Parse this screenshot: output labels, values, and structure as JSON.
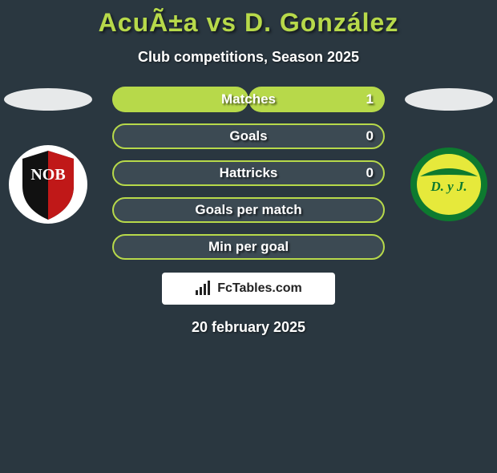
{
  "background_color": "#2a3740",
  "title": {
    "text": "AcuÃ±a vs D. González",
    "color": "#b7d94a",
    "fontsize": 32
  },
  "subtitle": {
    "text": "Club competitions, Season 2025",
    "color": "#ffffff",
    "fontsize": 18
  },
  "date": {
    "text": "20 february 2025",
    "color": "#ffffff",
    "fontsize": 18
  },
  "players": {
    "left": {
      "ellipse_color": "#e7e9ea",
      "crest": {
        "shape": "shield",
        "bg": "#ffffff",
        "fill_top": "#111111",
        "fill_bottom": "#c01818",
        "text": "NOB",
        "text_color": "#ffffff"
      }
    },
    "right": {
      "ellipse_color": "#e7e9ea",
      "crest": {
        "shape": "circle",
        "outer": "#0d7a2f",
        "inner": "#e6e93b",
        "text": "D. y J.",
        "text_color": "#0d7a2f"
      }
    }
  },
  "stats": {
    "pill_bg": "#3c4a53",
    "border_color": "#b7d94a",
    "label_color": "#ffffff",
    "value_color": "#ffffff",
    "rows": [
      {
        "label": "Matches",
        "left": "",
        "right": "1",
        "type": "split",
        "left_pct": 50,
        "left_fill": "#b7d94a",
        "right_fill": "#b7d94a"
      },
      {
        "label": "Goals",
        "left": "",
        "right": "0",
        "type": "outline"
      },
      {
        "label": "Hattricks",
        "left": "",
        "right": "0",
        "type": "outline"
      },
      {
        "label": "Goals per match",
        "left": "",
        "right": "",
        "type": "outline"
      },
      {
        "label": "Min per goal",
        "left": "",
        "right": "",
        "type": "outline"
      }
    ]
  },
  "logo": {
    "text": "FcTables.com",
    "bg": "#ffffff",
    "color": "#222222"
  }
}
